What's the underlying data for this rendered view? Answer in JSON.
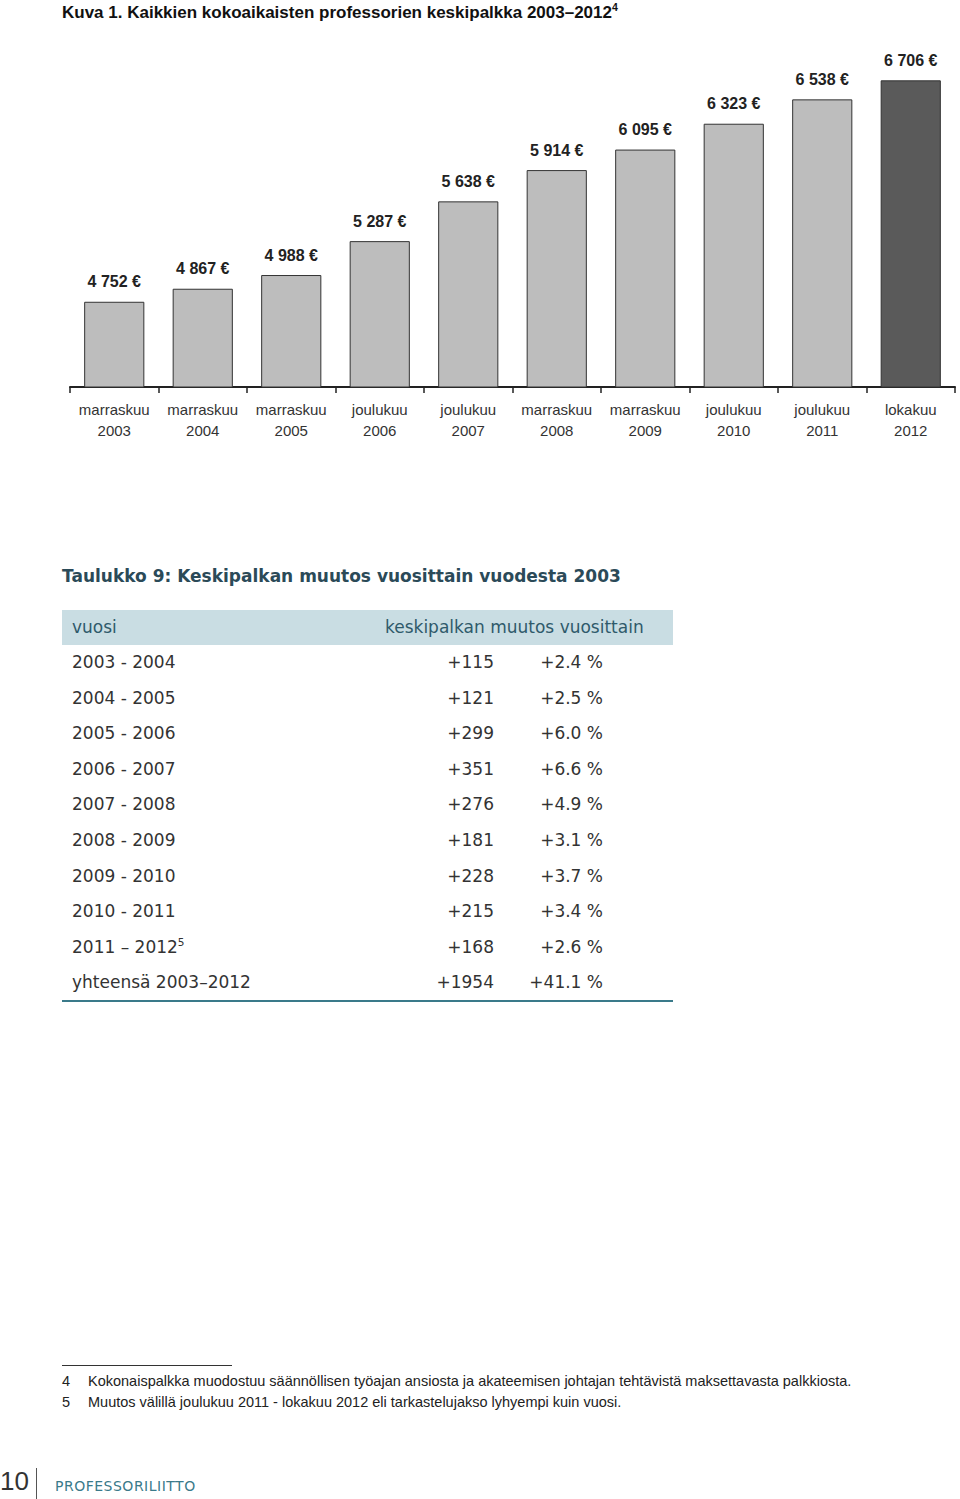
{
  "chart_data": {
    "type": "bar",
    "title": "Kuva 1. Kaikkien kokoaikaisten professorien keskipalkka 2003–2012",
    "title_note": "4",
    "categories": [
      "marraskuu 2003",
      "marraskuu 2004",
      "marraskuu 2005",
      "joulukuu 2006",
      "joulukuu 2007",
      "marraskuu 2008",
      "marraskuu 2009",
      "joulukuu 2010",
      "joulukuu 2011",
      "lokakuu 2012"
    ],
    "values": [
      4752,
      4867,
      4988,
      5287,
      5638,
      5914,
      6095,
      6323,
      6538,
      6706
    ],
    "value_labels": [
      "4 752 €",
      "4 867 €",
      "4 988 €",
      "5 287 €",
      "5 638 €",
      "5 914 €",
      "6 095 €",
      "6 323 €",
      "6 538 €",
      "6 706 €"
    ],
    "colors": [
      "#bdbdbd",
      "#bdbdbd",
      "#bdbdbd",
      "#bdbdbd",
      "#bdbdbd",
      "#bdbdbd",
      "#bdbdbd",
      "#bdbdbd",
      "#bdbdbd",
      "#5a5a5a"
    ],
    "ylim": [
      4000,
      7000
    ],
    "data_labels": true,
    "tick_labels": "x",
    "grid": false
  },
  "table": {
    "title": "Taulukko 9: Keskipalkan muutos vuosittain vuodesta 2003",
    "header": [
      "vuosi",
      "keskipalkan muutos vuosittain"
    ],
    "rows": [
      [
        "2003 - 2004",
        "+115",
        "+2.4 %"
      ],
      [
        "2004 - 2005",
        "+121",
        "+2.5 %"
      ],
      [
        "2005 - 2006",
        "+299",
        "+6.0 %"
      ],
      [
        "2006 - 2007",
        "+351",
        "+6.6 %"
      ],
      [
        "2007 - 2008",
        "+276",
        "+4.9 %"
      ],
      [
        "2008 - 2009",
        "+181",
        "+3.1 %"
      ],
      [
        "2009 - 2010",
        "+228",
        "+3.7 %"
      ],
      [
        "2010 - 2011",
        "+215",
        "+3.4 %"
      ],
      [
        {
          "text": "2011 – 2012",
          "note": "5"
        },
        "+168",
        "+2.6 %"
      ],
      [
        "yhteensä 2003–2012",
        "+1954",
        "+41.1 %"
      ]
    ]
  },
  "footnotes": [
    {
      "mark": "4",
      "text": "Kokonaispalkka muodostuu säännöllisen työajan ansiosta ja akateemisen johtajan tehtävistä maksettavasta palkkiosta."
    },
    {
      "mark": "5",
      "text": "Muutos välillä joulukuu 2011 - lokakuu 2012 eli tarkastelujakso lyhyempi kuin vuosi."
    }
  ],
  "footer": {
    "page": "10",
    "publisher": "PROFESSORILIITTO"
  }
}
